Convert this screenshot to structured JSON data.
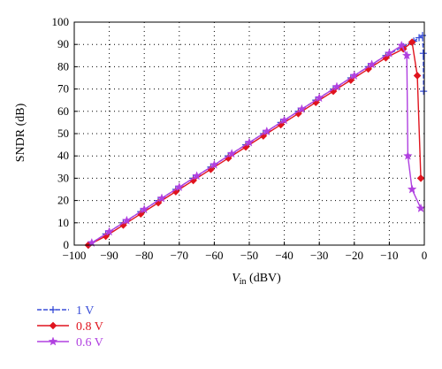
{
  "chart_data": {
    "type": "line",
    "xlabel_main": "V",
    "xlabel_sub": "in",
    "xlabel_unit": " (dBV)",
    "ylabel": "SNDR (dB)",
    "xlim": [
      -100,
      0
    ],
    "ylim": [
      0,
      100
    ],
    "x_ticks": [
      -100,
      -90,
      -80,
      -70,
      -60,
      -50,
      -40,
      -30,
      -20,
      -10,
      0
    ],
    "y_ticks": [
      0,
      10,
      20,
      30,
      40,
      50,
      60,
      70,
      80,
      90,
      100
    ],
    "grid": true,
    "legend_position": "below-left",
    "series": [
      {
        "name": "1 V",
        "color": "#3a4fd8",
        "marker": "plus",
        "dash": true,
        "points": [
          [
            -96,
            0
          ],
          [
            -91,
            5
          ],
          [
            -86,
            10
          ],
          [
            -81,
            15
          ],
          [
            -76,
            20
          ],
          [
            -71,
            25
          ],
          [
            -66,
            30
          ],
          [
            -61,
            35
          ],
          [
            -56,
            40
          ],
          [
            -51,
            45
          ],
          [
            -46,
            50
          ],
          [
            -41,
            55
          ],
          [
            -36,
            60
          ],
          [
            -31,
            65
          ],
          [
            -26,
            70
          ],
          [
            -21,
            75
          ],
          [
            -16,
            80
          ],
          [
            -11,
            85
          ],
          [
            -6,
            89
          ],
          [
            -3,
            91.5
          ],
          [
            -1.5,
            93
          ],
          [
            -0.5,
            94
          ],
          [
            -0.3,
            86
          ],
          [
            -0.2,
            69
          ]
        ]
      },
      {
        "name": "0.8 V",
        "color": "#e0141e",
        "marker": "diamond",
        "dash": false,
        "points": [
          [
            -96,
            0
          ],
          [
            -91,
            4
          ],
          [
            -86,
            9
          ],
          [
            -81,
            14
          ],
          [
            -76,
            19
          ],
          [
            -71,
            24
          ],
          [
            -66,
            29
          ],
          [
            -61,
            34
          ],
          [
            -56,
            39
          ],
          [
            -51,
            44
          ],
          [
            -46,
            49
          ],
          [
            -41,
            54
          ],
          [
            -36,
            59
          ],
          [
            -31,
            64
          ],
          [
            -26,
            69
          ],
          [
            -21,
            74
          ],
          [
            -16,
            79
          ],
          [
            -11,
            84
          ],
          [
            -6,
            88
          ],
          [
            -3.5,
            91
          ],
          [
            -2,
            76
          ],
          [
            -1,
            30
          ]
        ]
      },
      {
        "name": "0.6 V",
        "color": "#b040e0",
        "marker": "star",
        "dash": false,
        "points": [
          [
            -95,
            1
          ],
          [
            -90,
            6
          ],
          [
            -85,
            11
          ],
          [
            -80,
            16
          ],
          [
            -75,
            21
          ],
          [
            -70,
            26
          ],
          [
            -65,
            31
          ],
          [
            -60,
            36
          ],
          [
            -55,
            41
          ],
          [
            -50,
            46
          ],
          [
            -45,
            51
          ],
          [
            -40,
            56
          ],
          [
            -35,
            61
          ],
          [
            -30,
            66
          ],
          [
            -25,
            71
          ],
          [
            -20,
            76
          ],
          [
            -15,
            81
          ],
          [
            -10,
            86
          ],
          [
            -6.5,
            89.5
          ],
          [
            -5,
            85
          ],
          [
            -4.7,
            40
          ],
          [
            -3.5,
            25
          ],
          [
            -1,
            16.5
          ]
        ]
      }
    ]
  }
}
